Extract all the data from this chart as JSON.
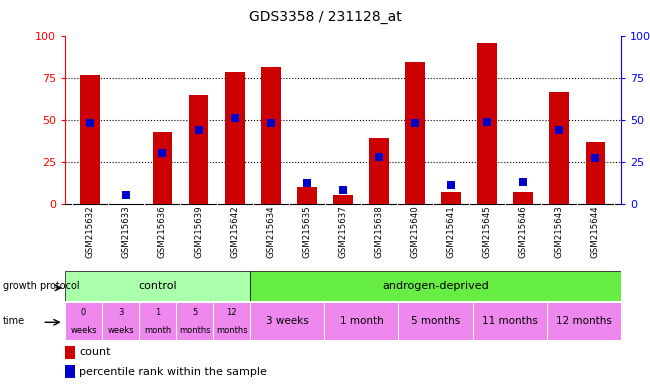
{
  "title": "GDS3358 / 231128_at",
  "samples": [
    "GSM215632",
    "GSM215633",
    "GSM215636",
    "GSM215639",
    "GSM215642",
    "GSM215634",
    "GSM215635",
    "GSM215637",
    "GSM215638",
    "GSM215640",
    "GSM215641",
    "GSM215645",
    "GSM215646",
    "GSM215643",
    "GSM215644"
  ],
  "count_values": [
    77,
    0,
    43,
    65,
    79,
    82,
    10,
    5,
    39,
    85,
    7,
    96,
    7,
    67,
    37
  ],
  "percentile_values": [
    48,
    5,
    30,
    44,
    51,
    48,
    12,
    8,
    28,
    48,
    11,
    49,
    13,
    44,
    27
  ],
  "ylim": [
    0,
    100
  ],
  "bar_color_red": "#cc0000",
  "bar_color_blue": "#0000cc",
  "control_color": "#aaffaa",
  "androgen_color": "#66ee44",
  "purple_color": "#ee88ee",
  "control_label": "control",
  "androgen_label": "androgen-deprived",
  "time_control_labels": [
    "0\nweeks",
    "3\nweeks",
    "1\nmonth",
    "5\nmonths",
    "12\nmonths"
  ],
  "time_androgen_labels": [
    "3 weeks",
    "1 month",
    "5 months",
    "11 months",
    "12 months"
  ],
  "time_androgen_spans": [
    2,
    2,
    2,
    2,
    2
  ],
  "legend_count": "count",
  "legend_percentile": "percentile rank within the sample",
  "bg_color": "#ffffff",
  "xlabels_bg": "#cccccc",
  "bar_width": 0.55,
  "blue_marker_size": 6
}
